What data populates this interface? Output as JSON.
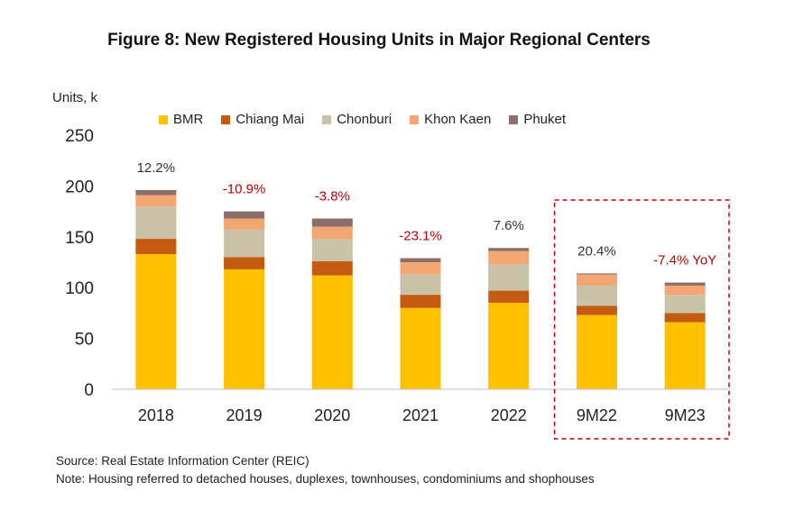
{
  "title": "Figure 8: New Registered Housing Units in Major Regional Centers",
  "footnotes": {
    "source": "Source: Real Estate Information Center (REIC)",
    "note": "Note: Housing referred to detached houses, duplexes, townhouses, condominiums and shophouses"
  },
  "chart_data": {
    "type": "bar",
    "stacked": true,
    "title": "Figure 8: New Registered Housing Units in Major Regional Centers",
    "ylabel": "Units, k",
    "xlabel": "",
    "ylim": [
      0,
      250
    ],
    "yticks": [
      "0",
      "50",
      "100",
      "150",
      "200",
      "250"
    ],
    "grid": false,
    "legend_position": "top",
    "categories": [
      "2018",
      "2019",
      "2020",
      "2021",
      "2022",
      "9M22",
      "9M23"
    ],
    "series": [
      {
        "name": "BMR",
        "color": "#FFC000",
        "values": [
          133,
          118,
          112,
          80,
          85,
          73,
          66
        ]
      },
      {
        "name": "Chiang Mai",
        "color": "#C55A11",
        "values": [
          15,
          12,
          14,
          13,
          12,
          9,
          9
        ]
      },
      {
        "name": "Chonburi",
        "color": "#C9C2A6",
        "values": [
          32,
          27,
          22,
          20,
          26,
          20,
          18
        ]
      },
      {
        "name": "Khon Kaen",
        "color": "#F4A672",
        "values": [
          11,
          11,
          12,
          12,
          13,
          11,
          9
        ]
      },
      {
        "name": "Phuket",
        "color": "#8C6F6A",
        "values": [
          5,
          7,
          8,
          4,
          3,
          1,
          3
        ]
      }
    ],
    "annotations": [
      {
        "text": "12.2%",
        "color": "#333333"
      },
      {
        "text": "-10.9%",
        "color": "#C00000"
      },
      {
        "text": "-3.8%",
        "color": "#C00000"
      },
      {
        "text": "-23.1%",
        "color": "#C00000"
      },
      {
        "text": "7.6%",
        "color": "#333333"
      },
      {
        "text": "20.4%",
        "color": "#333333"
      },
      {
        "text": "-7.4% YoY",
        "color": "#C00000"
      }
    ],
    "highlight_box_color": "#C00000"
  }
}
